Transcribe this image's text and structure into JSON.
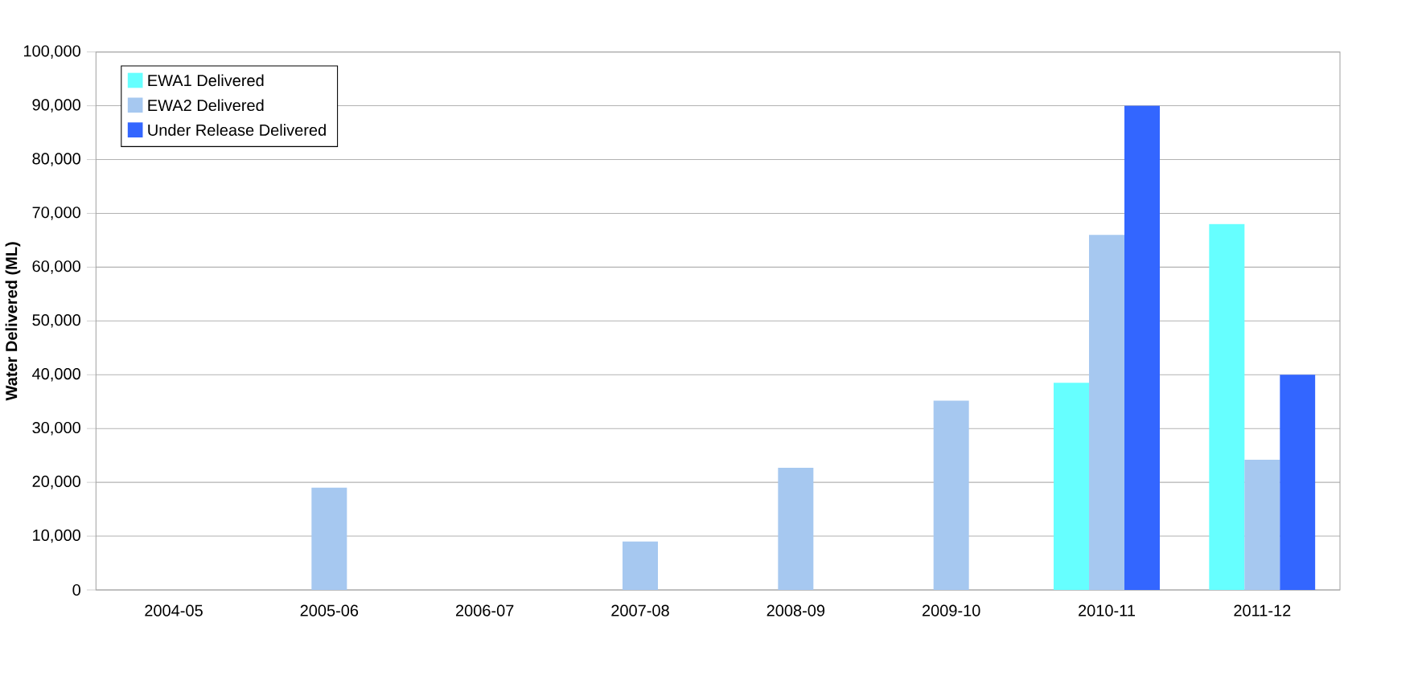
{
  "chart_data": {
    "type": "bar",
    "ylabel": "Water Delivered (ML)",
    "categories": [
      "2004-05",
      "2005-06",
      "2006-07",
      "2007-08",
      "2008-09",
      "2009-10",
      "2010-11",
      "2011-12"
    ],
    "series": [
      {
        "name": "EWA1 Delivered",
        "color": "#66ffff",
        "values": [
          0,
          0,
          0,
          0,
          0,
          0,
          38500,
          68000
        ]
      },
      {
        "name": "EWA2 Delivered",
        "color": "#a6c8f0",
        "values": [
          0,
          19000,
          0,
          9000,
          22700,
          35200,
          66000,
          24200
        ]
      },
      {
        "name": "Under Release Delivered",
        "color": "#3366ff",
        "values": [
          0,
          0,
          0,
          0,
          0,
          0,
          90000,
          40000
        ]
      }
    ],
    "ylim": [
      0,
      100000
    ],
    "yticks": [
      {
        "value": 0,
        "label": "0"
      },
      {
        "value": 10000,
        "label": "10,000"
      },
      {
        "value": 20000,
        "label": "20,000"
      },
      {
        "value": 30000,
        "label": "30,000"
      },
      {
        "value": 40000,
        "label": "40,000"
      },
      {
        "value": 50000,
        "label": "50,000"
      },
      {
        "value": 60000,
        "label": "60,000"
      },
      {
        "value": 70000,
        "label": "70,000"
      },
      {
        "value": 80000,
        "label": "80,000"
      },
      {
        "value": 90000,
        "label": "90,000"
      },
      {
        "value": 100000,
        "label": "100,000"
      }
    ],
    "grid": "y",
    "legend": "top left"
  }
}
